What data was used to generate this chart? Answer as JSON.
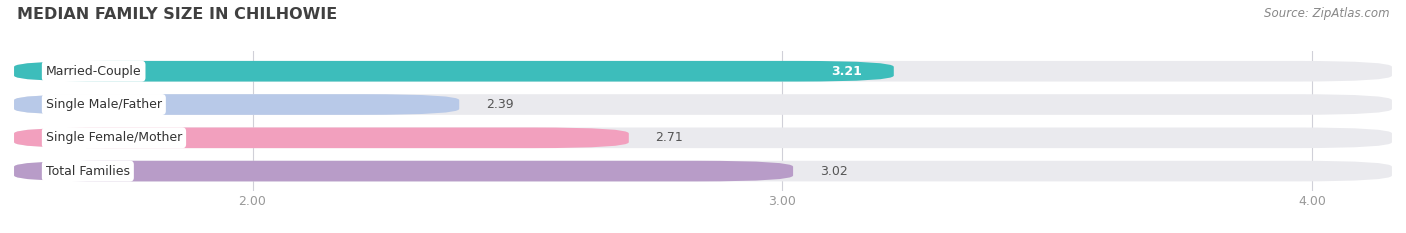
{
  "title": "MEDIAN FAMILY SIZE IN CHILHOWIE",
  "source": "Source: ZipAtlas.com",
  "categories": [
    "Married-Couple",
    "Single Male/Father",
    "Single Female/Mother",
    "Total Families"
  ],
  "values": [
    3.21,
    2.39,
    2.71,
    3.02
  ],
  "bar_colors": [
    "#3dbdbb",
    "#b8c9e8",
    "#f2a0be",
    "#b89cc8"
  ],
  "bar_bg_color": "#eaeaee",
  "xmin": 1.55,
  "xlim": [
    1.55,
    4.15
  ],
  "xticks": [
    2.0,
    3.0,
    4.0
  ],
  "xtick_labels": [
    "2.00",
    "3.00",
    "4.00"
  ],
  "background_color": "#ffffff",
  "title_fontsize": 11.5,
  "label_fontsize": 9.0,
  "value_fontsize": 9.0,
  "source_fontsize": 8.5,
  "bar_height": 0.62,
  "value_label_inside": [
    true,
    false,
    false,
    false
  ]
}
